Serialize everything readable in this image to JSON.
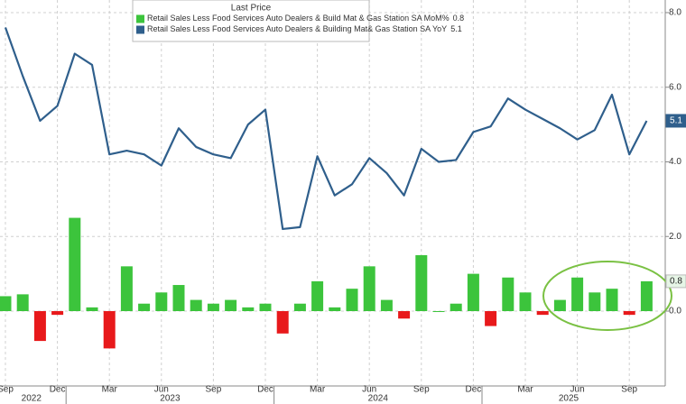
{
  "chart_data": {
    "type": "combo",
    "legend_title": "Last Price",
    "categories": [
      "Sep",
      null,
      null,
      "Dec",
      null,
      null,
      "Mar",
      null,
      null,
      "Jun",
      null,
      null,
      "Sep",
      null,
      null,
      "Dec",
      null,
      null,
      "Mar",
      null,
      null,
      "Jun",
      null,
      null,
      "Sep",
      null,
      null,
      "Dec",
      null,
      null,
      "Mar",
      null,
      null,
      "Jun",
      null,
      null,
      "Sep",
      null
    ],
    "year_groups": [
      {
        "label": "2022",
        "span": 4
      },
      {
        "label": "2023",
        "span": 12
      },
      {
        "label": "2024",
        "span": 12
      },
      {
        "label": "2025",
        "span": 10
      }
    ],
    "series": [
      {
        "name": "Retail Sales Less Food Services Auto Dealers & Build Mat & Gas Station SA MoM%",
        "type": "bar",
        "color": "#3cc43c",
        "negative_color": "#e8191b",
        "values": [
          0.4,
          0.45,
          -0.8,
          -0.1,
          2.5,
          0.1,
          -1.0,
          1.2,
          0.2,
          0.5,
          0.7,
          0.3,
          0.2,
          0.3,
          0.1,
          0.2,
          -0.6,
          0.2,
          0.8,
          0.1,
          0.6,
          1.2,
          0.3,
          -0.2,
          1.5,
          0.0,
          0.2,
          1.0,
          -0.4,
          0.9,
          0.5,
          -0.1,
          0.3,
          0.9,
          0.5,
          0.6,
          -0.1,
          0.8
        ]
      },
      {
        "name": "Retail Sales Less Food Services Auto Dealers & Building Mat& Gas Station SA YoY",
        "type": "line",
        "color": "#2f5f8c",
        "values": [
          7.6,
          6.3,
          5.1,
          5.5,
          6.9,
          6.6,
          4.2,
          4.3,
          4.2,
          3.9,
          4.9,
          4.4,
          4.2,
          4.1,
          5.0,
          5.4,
          2.2,
          2.25,
          4.15,
          3.1,
          3.4,
          4.1,
          3.7,
          3.1,
          4.35,
          4.0,
          4.05,
          4.8,
          4.95,
          5.7,
          5.4,
          5.15,
          4.9,
          4.6,
          4.85,
          5.8,
          4.2,
          5.1
        ]
      }
    ],
    "ylim": [
      -2,
      8.2
    ],
    "yticks": [
      {
        "value": 0,
        "label": "0.0"
      },
      {
        "value": 2,
        "label": "2.0"
      },
      {
        "value": 4,
        "label": "4.0"
      },
      {
        "value": 6,
        "label": "6.0"
      },
      {
        "value": 8,
        "label": "8.0"
      }
    ],
    "grid": true
  }
}
